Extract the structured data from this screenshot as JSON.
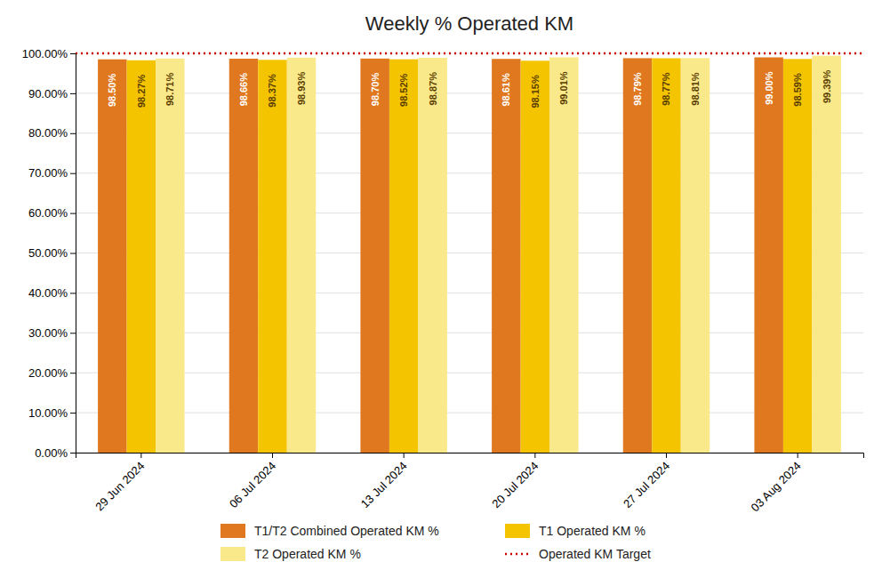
{
  "chart_data": {
    "type": "bar",
    "title": "Weekly % Operated KM",
    "categories": [
      "29 Jun 2024",
      "06 Jul 2024",
      "13 Jul 2024",
      "20 Jul 2024",
      "27 Jul 2024",
      "03 Aug 2024"
    ],
    "series": [
      {
        "name": "T1/T2 Combined Operated KM %",
        "color": "#E07820",
        "values": [
          98.5,
          98.66,
          98.7,
          98.61,
          98.79,
          99.0
        ],
        "value_labels": [
          "98.50%",
          "98.66%",
          "98.70%",
          "98.61%",
          "98.79%",
          "99.00%"
        ]
      },
      {
        "name": "T1 Operated KM %",
        "color": "#F5C400",
        "values": [
          98.27,
          98.37,
          98.52,
          98.15,
          98.77,
          98.59
        ],
        "value_labels": [
          "98.27%",
          "98.37%",
          "98.52%",
          "98.15%",
          "98.77%",
          "98.59%"
        ]
      },
      {
        "name": "T2 Operated KM %",
        "color": "#FAE98A",
        "values": [
          98.71,
          98.93,
          98.87,
          99.01,
          98.81,
          99.39
        ],
        "value_labels": [
          "98.71%",
          "98.93%",
          "98.87%",
          "99.01%",
          "98.81%",
          "99.39%"
        ]
      }
    ],
    "target": {
      "name": "Operated KM Target",
      "value": 100.0,
      "color": "#CC0000",
      "line_style": "dotted"
    },
    "ylim": [
      0,
      100
    ],
    "yticks": [
      {
        "value": 0,
        "label": "0.00%"
      },
      {
        "value": 10,
        "label": "10.00%"
      },
      {
        "value": 20,
        "label": "20.00%"
      },
      {
        "value": 30,
        "label": "30.00%"
      },
      {
        "value": 40,
        "label": "40.00%"
      },
      {
        "value": 50,
        "label": "50.00%"
      },
      {
        "value": 60,
        "label": "60.00%"
      },
      {
        "value": 70,
        "label": "70.00%"
      },
      {
        "value": 80,
        "label": "80.00%"
      },
      {
        "value": 90,
        "label": "90.00%"
      },
      {
        "value": 100,
        "label": "100.00%"
      }
    ],
    "grid": true,
    "data_labels": true,
    "legend": "bottom"
  }
}
